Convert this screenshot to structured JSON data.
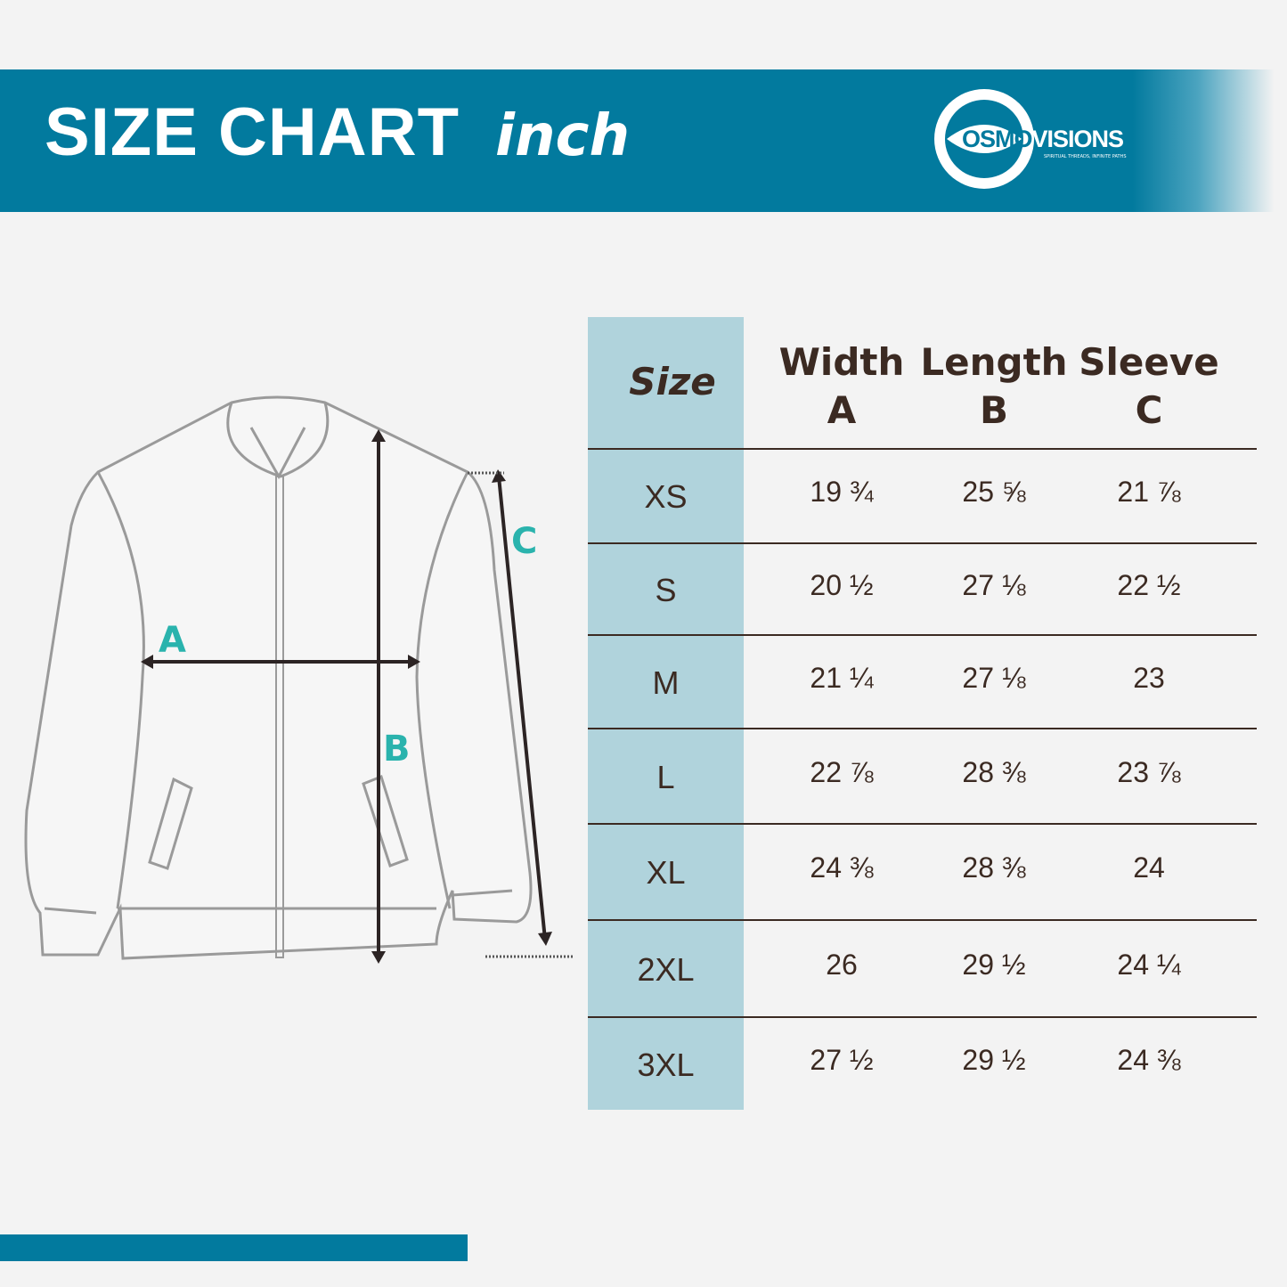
{
  "header": {
    "title": "SIZE CHART",
    "unit": "inch"
  },
  "logo": {
    "name_part1": "OSMO",
    "name_part2": "VISIONS",
    "tagline": "SPIRITUAL THREADS, INFINITE PATHS"
  },
  "diagram": {
    "labels": [
      "A",
      "B",
      "C"
    ]
  },
  "table": {
    "columns": [
      {
        "label": "Size",
        "sub": ""
      },
      {
        "label": "Width",
        "sub": "A"
      },
      {
        "label": "Length",
        "sub": "B"
      },
      {
        "label": "Sleeve",
        "sub": "C"
      }
    ],
    "rows": [
      {
        "size": "XS",
        "width": "19 ¾",
        "length": "25 ⅝",
        "sleeve": "21 ⅞"
      },
      {
        "size": "S",
        "width": "20 ½",
        "length": "27 ⅛",
        "sleeve": "22 ½"
      },
      {
        "size": "M",
        "width": "21 ¼",
        "length": "27 ⅛",
        "sleeve": "23"
      },
      {
        "size": "L",
        "width": "22 ⅞",
        "length": "28 ⅜",
        "sleeve": "23 ⅞"
      },
      {
        "size": "XL",
        "width": "24 ⅜",
        "length": "28 ⅜",
        "sleeve": "24"
      },
      {
        "size": "2XL",
        "width": "26",
        "length": "29 ½",
        "sleeve": "24 ¼"
      },
      {
        "size": "3XL",
        "width": "27 ½",
        "length": "29 ½",
        "sleeve": "24 ⅜"
      }
    ]
  },
  "colors": {
    "brand": "#027a9e",
    "size_column": "#b0d3dc",
    "text": "#3b2a22",
    "label_accent": "#2ab3ad"
  }
}
